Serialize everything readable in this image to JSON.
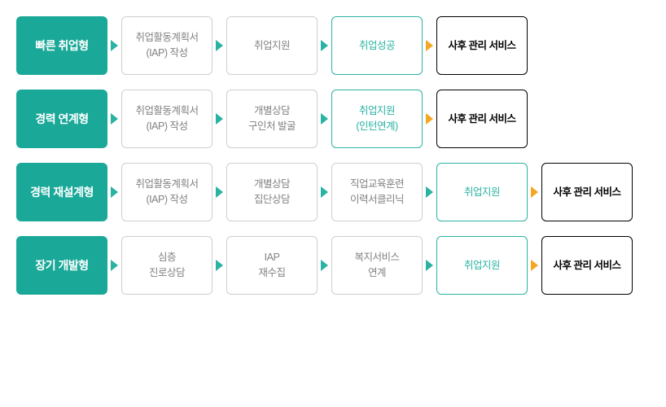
{
  "colors": {
    "teal": "#2ab3a3",
    "teal_dark": "#1aa898",
    "gray_border": "#cfcfcf",
    "gray_text": "#828282",
    "black": "#000000",
    "white": "#ffffff",
    "orange": "#f5a623",
    "head_text": "#ffffff"
  },
  "rows": [
    {
      "head": "빠른 취업형",
      "steps": [
        {
          "lines": [
            "취업활동계획서",
            "(IAP) 작성"
          ],
          "style": "gray"
        },
        {
          "lines": [
            "취업지원"
          ],
          "style": "gray"
        },
        {
          "lines": [
            "취업성공"
          ],
          "style": "teal"
        },
        {
          "lines": [
            "사후 관리 서비스"
          ],
          "style": "black",
          "arrow_in": "orange"
        }
      ]
    },
    {
      "head": "경력 연계형",
      "steps": [
        {
          "lines": [
            "취업활동계획서",
            "(IAP) 작성"
          ],
          "style": "gray"
        },
        {
          "lines": [
            "개별상담",
            "구인처 발굴"
          ],
          "style": "gray"
        },
        {
          "lines": [
            "취업지원",
            "(인턴연계)"
          ],
          "style": "teal"
        },
        {
          "lines": [
            "사후 관리 서비스"
          ],
          "style": "black",
          "arrow_in": "orange"
        }
      ]
    },
    {
      "head": "경력 재설계형",
      "steps": [
        {
          "lines": [
            "취업활동계획서",
            "(IAP) 작성"
          ],
          "style": "gray"
        },
        {
          "lines": [
            "개별상담",
            "집단상담"
          ],
          "style": "gray"
        },
        {
          "lines": [
            "직업교육훈련",
            "이력서클리닉"
          ],
          "style": "gray"
        },
        {
          "lines": [
            "취업지원"
          ],
          "style": "teal"
        },
        {
          "lines": [
            "사후 관리 서비스"
          ],
          "style": "black",
          "arrow_in": "orange"
        }
      ]
    },
    {
      "head": "장기 개발형",
      "steps": [
        {
          "lines": [
            "심층",
            "진로상담"
          ],
          "style": "gray"
        },
        {
          "lines": [
            "IAP",
            "재수집"
          ],
          "style": "gray"
        },
        {
          "lines": [
            "복지서비스",
            "연계"
          ],
          "style": "gray"
        },
        {
          "lines": [
            "취업지원"
          ],
          "style": "teal"
        },
        {
          "lines": [
            "사후 관리 서비스"
          ],
          "style": "black",
          "arrow_in": "orange"
        }
      ]
    }
  ]
}
